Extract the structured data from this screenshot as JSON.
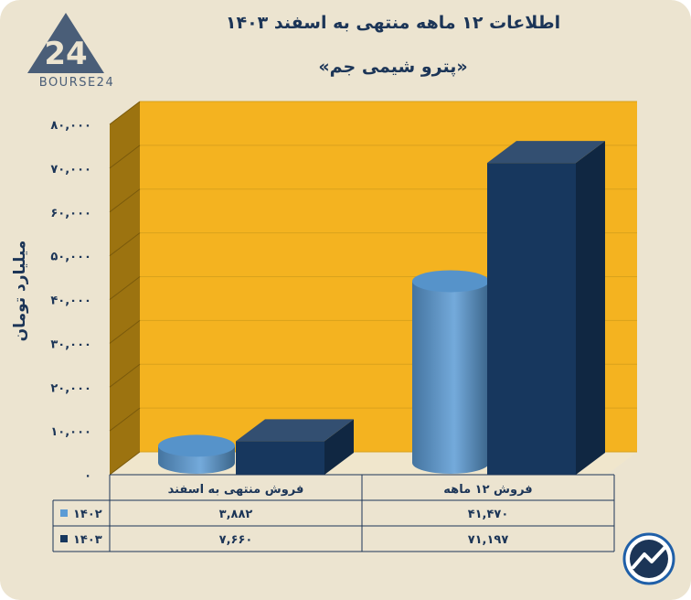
{
  "header": {
    "title": "اطلاعات ۱۲ ماهه منتهی به اسفند ۱۴۰۳",
    "subtitle": "«پترو شیمی جم»",
    "logo_text": "BOURSE24",
    "logo_mark": "24"
  },
  "chart_data": {
    "type": "bar",
    "ylabel": "میلیارد تومان",
    "ylim": [
      0,
      80000
    ],
    "yticks": [
      "۰",
      "۱۰,۰۰۰",
      "۲۰,۰۰۰",
      "۳۰,۰۰۰",
      "۴۰,۰۰۰",
      "۵۰,۰۰۰",
      "۶۰,۰۰۰",
      "۷۰,۰۰۰",
      "۸۰,۰۰۰"
    ],
    "categories": [
      "فروش منتهی به اسفند",
      "فروش ۱۲ ماهه"
    ],
    "series": [
      {
        "name": "۱۴۰۲",
        "color": "#5b9bd5",
        "values": [
          3882,
          41470
        ],
        "labels": [
          "۳,۸۸۲",
          "۴۱,۴۷۰"
        ]
      },
      {
        "name": "۱۴۰۳",
        "color": "#17375e",
        "values": [
          7660,
          71197
        ],
        "labels": [
          "۷,۶۶۰",
          "۷۱,۱۹۷"
        ]
      }
    ],
    "grid": true,
    "legend": "table-bottom-left",
    "colors": {
      "back_wall": "#f4b320",
      "side_wall": "#9c7310",
      "floor": "#f0e6cc"
    }
  }
}
